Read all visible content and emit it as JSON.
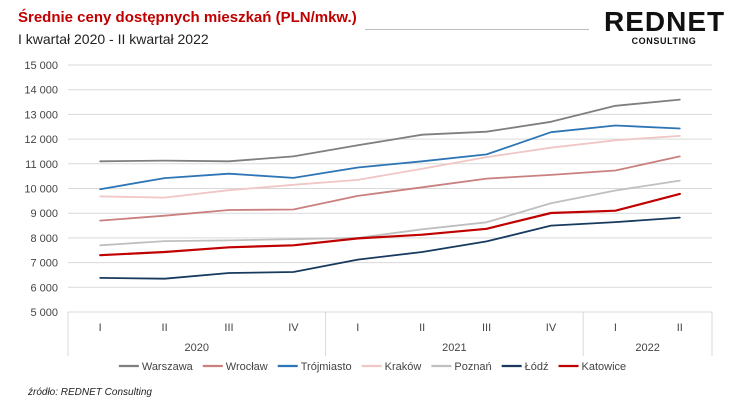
{
  "header": {
    "title": "Średnie ceny dostępnych mieszkań (PLN/mkw.)",
    "subtitle": "I kwartał 2020 - II kwartał 2022"
  },
  "logo": {
    "main": "REDNET",
    "sub": "CONSULTING"
  },
  "source": "źródło: REDNET Consulting",
  "chart_data": {
    "type": "line",
    "ylim": [
      5000,
      15000
    ],
    "yticks": [
      "5 000",
      "6 000",
      "7 000",
      "8 000",
      "9 000",
      "10 000",
      "11 000",
      "12 000",
      "13 000",
      "14 000",
      "15 000"
    ],
    "grid": true,
    "legend": "bottom",
    "categories": [
      "I",
      "II",
      "III",
      "IV",
      "I",
      "II",
      "III",
      "IV",
      "I",
      "II"
    ],
    "year_groups": [
      {
        "label": "2020",
        "count": 4
      },
      {
        "label": "2021",
        "count": 4
      },
      {
        "label": "2022",
        "count": 2
      }
    ],
    "series": [
      {
        "name": "Warszawa",
        "color": "#7f7f7f",
        "values": [
          11100,
          11130,
          11100,
          11300,
          11750,
          12180,
          12300,
          12700,
          13350,
          13600
        ]
      },
      {
        "name": "Wrocław",
        "color": "#c9807f",
        "values": [
          8700,
          8900,
          9130,
          9150,
          9700,
          10050,
          10400,
          10550,
          10730,
          11300
        ]
      },
      {
        "name": "Trójmiasto",
        "color": "#2e75b6",
        "values": [
          9970,
          10420,
          10600,
          10430,
          10850,
          11100,
          11380,
          12280,
          12550,
          12430
        ]
      },
      {
        "name": "Kraków",
        "color": "#f0c6c6",
        "values": [
          9680,
          9630,
          9930,
          10150,
          10350,
          10800,
          11270,
          11650,
          11950,
          12130
        ]
      },
      {
        "name": "Poznań",
        "color": "#bfbfbf",
        "values": [
          7700,
          7870,
          7900,
          7950,
          8000,
          8350,
          8630,
          9400,
          9920,
          10320
        ]
      },
      {
        "name": "Łódź",
        "color": "#173a5e",
        "values": [
          6380,
          6350,
          6580,
          6620,
          7120,
          7430,
          7860,
          8500,
          8640,
          8820
        ]
      },
      {
        "name": "Katowice",
        "color": "#c00000",
        "values": [
          7300,
          7430,
          7620,
          7700,
          7980,
          8130,
          8370,
          9010,
          9100,
          9780
        ]
      }
    ]
  }
}
